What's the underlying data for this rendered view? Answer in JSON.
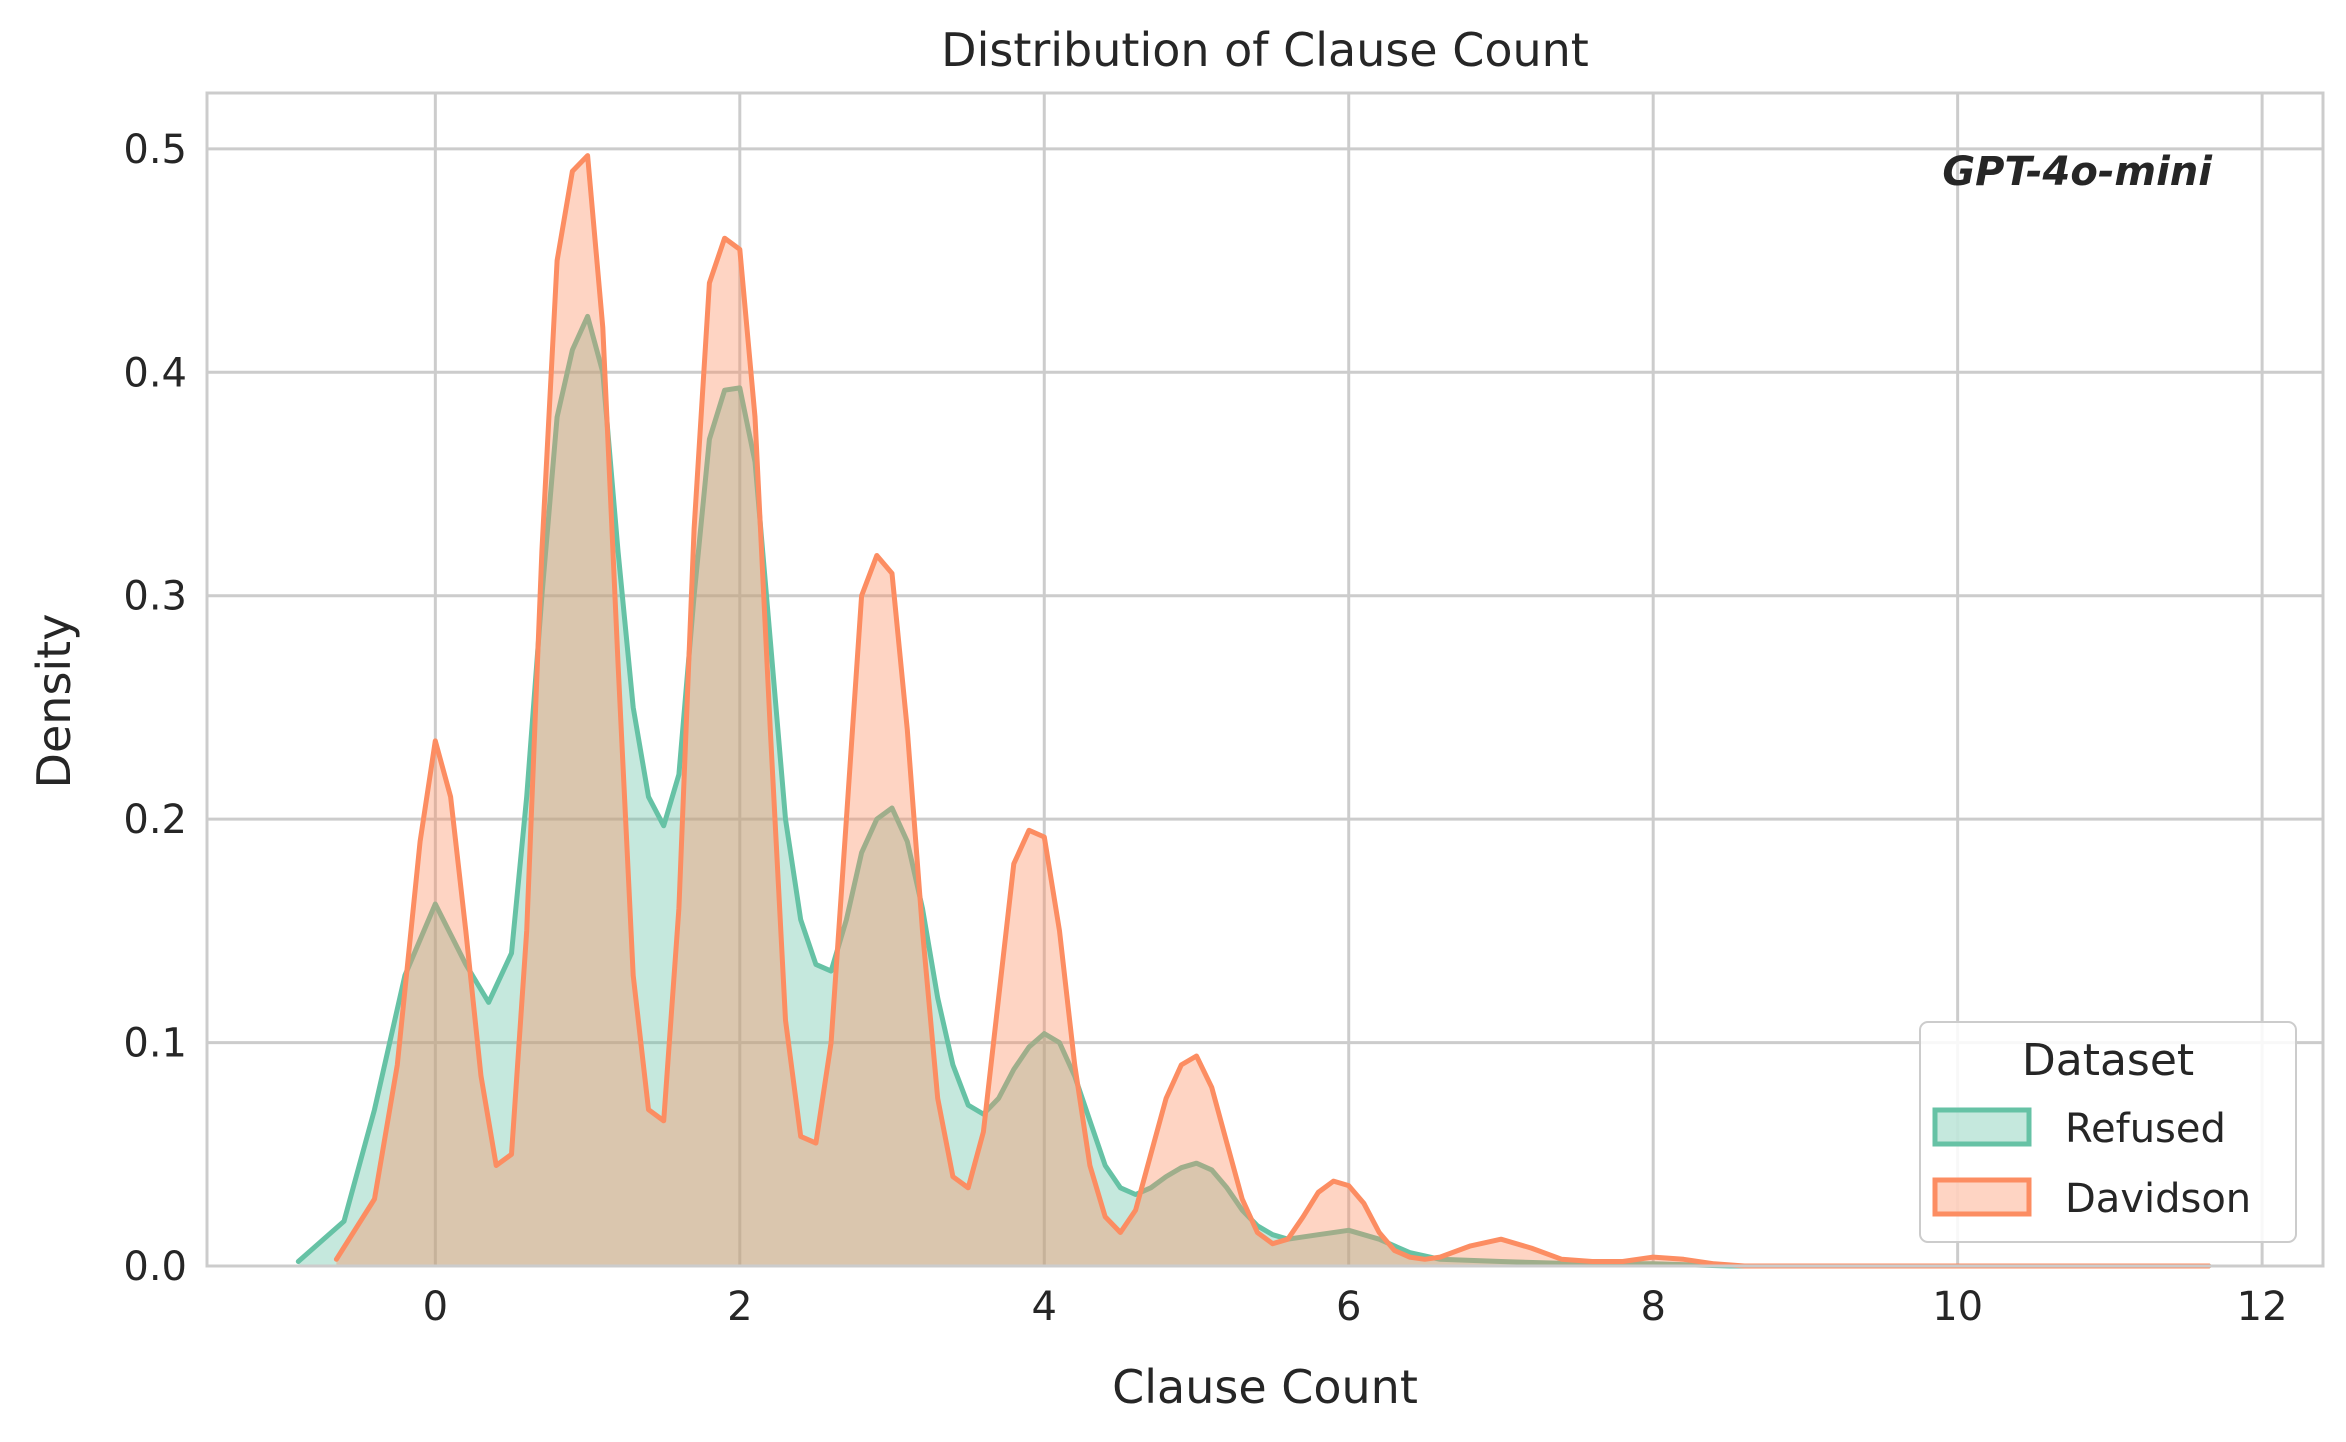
{
  "chart_data": {
    "type": "area",
    "title": "Distribution of Clause Count",
    "xlabel": "Clause Count",
    "ylabel": "Density",
    "xlim": [
      -1.5,
      12.4
    ],
    "ylim": [
      0,
      0.525
    ],
    "x_ticks": [
      "0",
      "2",
      "4",
      "6",
      "8",
      "10",
      "12"
    ],
    "x_tick_values": [
      0,
      2,
      4,
      6,
      8,
      10,
      12
    ],
    "y_ticks": [
      "0.0",
      "0.1",
      "0.2",
      "0.3",
      "0.4",
      "0.5"
    ],
    "y_tick_values": [
      0,
      0.1,
      0.2,
      0.3,
      0.4,
      0.5
    ],
    "grid": true,
    "annotation": "GPT-4o-mini",
    "legend": {
      "title": "Dataset",
      "position": "lower-right",
      "entries": [
        "Refused",
        "Davidson"
      ]
    },
    "series": [
      {
        "name": "Refused",
        "color": "#66c2a5",
        "x": [
          -0.9,
          -0.6,
          -0.4,
          -0.2,
          0.0,
          0.2,
          0.35,
          0.5,
          0.6,
          0.7,
          0.8,
          0.9,
          1.0,
          1.1,
          1.2,
          1.3,
          1.4,
          1.5,
          1.6,
          1.7,
          1.8,
          1.9,
          2.0,
          2.1,
          2.2,
          2.3,
          2.4,
          2.5,
          2.6,
          2.7,
          2.8,
          2.9,
          3.0,
          3.1,
          3.2,
          3.3,
          3.4,
          3.5,
          3.6,
          3.7,
          3.8,
          3.9,
          4.0,
          4.1,
          4.2,
          4.3,
          4.4,
          4.5,
          4.6,
          4.7,
          4.8,
          4.9,
          5.0,
          5.1,
          5.2,
          5.3,
          5.4,
          5.5,
          5.6,
          5.8,
          6.0,
          6.2,
          6.4,
          6.6,
          7.0,
          7.5,
          8.0,
          8.5,
          9.0,
          10.0,
          11.0,
          11.65
        ],
        "y": [
          0.002,
          0.02,
          0.07,
          0.13,
          0.162,
          0.135,
          0.118,
          0.14,
          0.21,
          0.3,
          0.38,
          0.41,
          0.425,
          0.4,
          0.32,
          0.25,
          0.21,
          0.197,
          0.22,
          0.3,
          0.37,
          0.392,
          0.393,
          0.36,
          0.28,
          0.2,
          0.155,
          0.135,
          0.132,
          0.155,
          0.185,
          0.2,
          0.205,
          0.19,
          0.16,
          0.12,
          0.09,
          0.072,
          0.068,
          0.075,
          0.088,
          0.098,
          0.104,
          0.1,
          0.085,
          0.065,
          0.045,
          0.035,
          0.032,
          0.035,
          0.04,
          0.044,
          0.046,
          0.043,
          0.035,
          0.025,
          0.018,
          0.014,
          0.012,
          0.014,
          0.016,
          0.012,
          0.006,
          0.003,
          0.002,
          0.001,
          0.001,
          0.0,
          0.0,
          0.0,
          0.0,
          0.0
        ]
      },
      {
        "name": "Davidson",
        "color": "#fc8d62",
        "x": [
          -0.65,
          -0.4,
          -0.25,
          -0.1,
          0.0,
          0.1,
          0.2,
          0.3,
          0.4,
          0.5,
          0.6,
          0.7,
          0.8,
          0.9,
          1.0,
          1.1,
          1.2,
          1.3,
          1.4,
          1.5,
          1.6,
          1.7,
          1.8,
          1.9,
          2.0,
          2.1,
          2.2,
          2.3,
          2.4,
          2.5,
          2.6,
          2.7,
          2.8,
          2.9,
          3.0,
          3.1,
          3.2,
          3.3,
          3.4,
          3.5,
          3.6,
          3.7,
          3.8,
          3.9,
          4.0,
          4.1,
          4.2,
          4.3,
          4.4,
          4.5,
          4.6,
          4.7,
          4.8,
          4.9,
          5.0,
          5.1,
          5.2,
          5.3,
          5.4,
          5.5,
          5.6,
          5.7,
          5.8,
          5.9,
          6.0,
          6.1,
          6.2,
          6.3,
          6.4,
          6.5,
          6.6,
          6.8,
          7.0,
          7.2,
          7.4,
          7.6,
          7.8,
          8.0,
          8.2,
          8.4,
          8.6,
          9.0,
          10.0,
          11.0,
          11.65
        ],
        "y": [
          0.003,
          0.03,
          0.09,
          0.19,
          0.235,
          0.21,
          0.15,
          0.085,
          0.045,
          0.05,
          0.15,
          0.32,
          0.45,
          0.49,
          0.497,
          0.42,
          0.27,
          0.13,
          0.07,
          0.065,
          0.16,
          0.33,
          0.44,
          0.46,
          0.455,
          0.38,
          0.24,
          0.11,
          0.058,
          0.055,
          0.1,
          0.2,
          0.3,
          0.318,
          0.31,
          0.24,
          0.15,
          0.075,
          0.04,
          0.035,
          0.06,
          0.12,
          0.18,
          0.195,
          0.192,
          0.15,
          0.09,
          0.045,
          0.022,
          0.015,
          0.025,
          0.05,
          0.075,
          0.09,
          0.094,
          0.08,
          0.055,
          0.03,
          0.015,
          0.01,
          0.012,
          0.022,
          0.033,
          0.038,
          0.036,
          0.028,
          0.015,
          0.007,
          0.004,
          0.003,
          0.004,
          0.009,
          0.012,
          0.008,
          0.003,
          0.002,
          0.002,
          0.004,
          0.003,
          0.001,
          0.0,
          0.0,
          0.0,
          0.0,
          0.0
        ]
      }
    ]
  }
}
